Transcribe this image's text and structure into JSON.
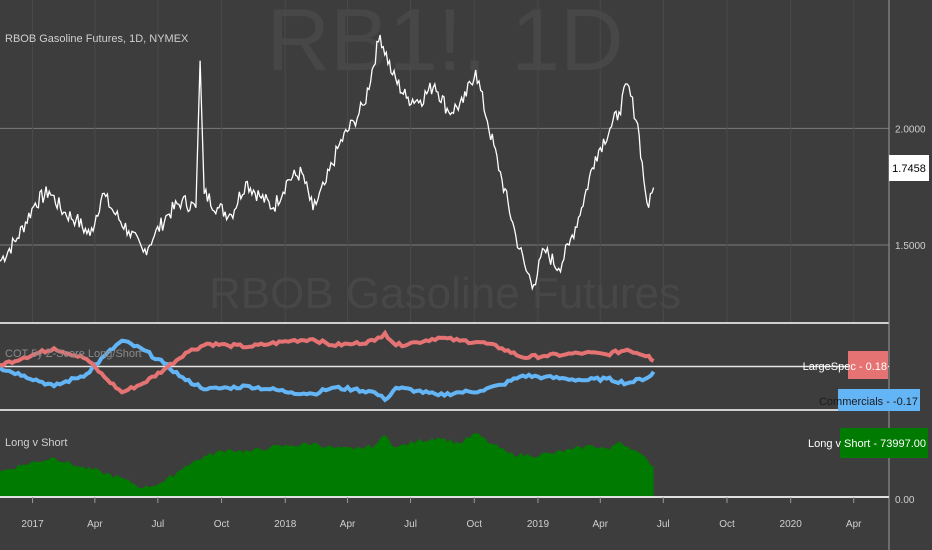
{
  "window": {
    "symbol_title": "RBOB Gasoline Futures, 1D, NYMEX",
    "watermark_symbol": "RB1!, 1D",
    "watermark_name": "RBOB Gasoline Futures"
  },
  "colors": {
    "background": "#3d3d3d",
    "price_line": "#ffffff",
    "grid": "#7a7a7a",
    "separator": "#cfcfcf",
    "large_spec": "#e57373",
    "commercials": "#64b5f6",
    "long_v_short": "#007a00",
    "price_tag_bg": "#ffffff",
    "price_tag_text": "#000000"
  },
  "chart_data": [
    {
      "type": "line",
      "title": "RBOB Gasoline Futures, 1D, NYMEX",
      "series": [
        {
          "values_x_dates": [
            "2016-11-15",
            "2016-12-10",
            "2017-01-05",
            "2017-01-25",
            "2017-02-15",
            "2017-03-05",
            "2017-03-25",
            "2017-04-12",
            "2017-05-01",
            "2017-05-20",
            "2017-06-10",
            "2017-06-26",
            "2017-07-15",
            "2017-08-05",
            "2017-08-25",
            "2017-08-31",
            "2017-09-06",
            "2017-09-25",
            "2017-10-15",
            "2017-11-05",
            "2017-11-25",
            "2017-12-15",
            "2018-01-05",
            "2018-01-25",
            "2018-02-10",
            "2018-03-01",
            "2018-03-20",
            "2018-04-10",
            "2018-04-25",
            "2018-05-18",
            "2018-06-05",
            "2018-06-25",
            "2018-07-15",
            "2018-08-05",
            "2018-08-25",
            "2018-09-15",
            "2018-10-03",
            "2018-10-20",
            "2018-11-10",
            "2018-11-30",
            "2018-12-15",
            "2018-12-26",
            "2019-01-10",
            "2019-01-31",
            "2019-02-15",
            "2019-03-05",
            "2019-03-25",
            "2019-04-15",
            "2019-04-28",
            "2019-05-10",
            "2019-05-25",
            "2019-06-05",
            "2019-06-10",
            "2019-06-17"
          ],
          "values": [
            1.43,
            1.53,
            1.68,
            1.73,
            1.64,
            1.61,
            1.54,
            1.72,
            1.63,
            1.56,
            1.47,
            1.54,
            1.63,
            1.69,
            1.66,
            2.29,
            1.72,
            1.66,
            1.63,
            1.77,
            1.71,
            1.66,
            1.78,
            1.81,
            1.65,
            1.77,
            1.93,
            2.03,
            2.1,
            2.4,
            2.23,
            2.13,
            2.12,
            2.19,
            2.07,
            2.11,
            2.25,
            2.03,
            1.78,
            1.54,
            1.39,
            1.33,
            1.48,
            1.4,
            1.5,
            1.66,
            1.88,
            2.0,
            2.07,
            2.19,
            2.02,
            1.73,
            1.66,
            1.7458
          ]
        }
      ],
      "y_ticks": [
        "2.0000",
        "1.5000"
      ],
      "ylim": [
        1.17,
        2.55
      ],
      "last_value_label": "1.7458",
      "grid": true
    },
    {
      "type": "line",
      "title": "COT 5y Z-Score Long/Short",
      "x_dates": [
        "2016-11-15",
        "2016-12-20",
        "2017-02-01",
        "2017-03-20",
        "2017-04-15",
        "2017-05-10",
        "2017-06-10",
        "2017-07-10",
        "2017-08-10",
        "2017-09-10",
        "2017-10-10",
        "2017-11-10",
        "2017-12-10",
        "2018-01-10",
        "2018-02-10",
        "2018-03-10",
        "2018-04-10",
        "2018-05-10",
        "2018-05-25",
        "2018-06-10",
        "2018-07-10",
        "2018-08-10",
        "2018-09-10",
        "2018-10-10",
        "2018-11-10",
        "2018-12-10",
        "2019-01-10",
        "2019-02-10",
        "2019-03-10",
        "2019-04-10",
        "2019-05-10",
        "2019-06-10",
        "2019-06-17"
      ],
      "series": [
        {
          "name": "LargeSpec",
          "values": [
            0.05,
            0.3,
            0.6,
            0.25,
            -0.35,
            -0.85,
            -0.55,
            -0.1,
            0.45,
            0.75,
            0.7,
            0.65,
            0.75,
            0.85,
            0.9,
            0.7,
            0.75,
            0.85,
            1.1,
            0.7,
            0.8,
            0.95,
            0.85,
            0.8,
            0.6,
            0.3,
            0.35,
            0.4,
            0.45,
            0.4,
            0.55,
            0.35,
            0.18
          ]
        },
        {
          "name": "Commercials",
          "values": [
            -0.05,
            -0.3,
            -0.65,
            -0.25,
            0.35,
            0.85,
            0.55,
            0.1,
            -0.45,
            -0.75,
            -0.7,
            -0.65,
            -0.75,
            -0.85,
            -0.9,
            -0.7,
            -0.75,
            -0.85,
            -1.1,
            -0.7,
            -0.8,
            -0.95,
            -0.85,
            -0.8,
            -0.6,
            -0.3,
            -0.35,
            -0.4,
            -0.45,
            -0.4,
            -0.55,
            -0.35,
            -0.17
          ]
        }
      ],
      "ylim": [
        -1.4,
        1.4
      ],
      "last_value_labels": [
        "LargeSpec - 0.18",
        "Commercials - -0.17"
      ]
    },
    {
      "type": "area",
      "title": "Long v Short",
      "x_dates": [
        "2016-11-15",
        "2016-12-20",
        "2017-02-01",
        "2017-03-10",
        "2017-04-10",
        "2017-05-15",
        "2017-06-10",
        "2017-07-10",
        "2017-08-10",
        "2017-09-10",
        "2017-10-10",
        "2017-11-10",
        "2017-12-10",
        "2018-01-10",
        "2018-02-10",
        "2018-03-10",
        "2018-04-10",
        "2018-05-10",
        "2018-05-25",
        "2018-06-10",
        "2018-07-10",
        "2018-08-10",
        "2018-09-10",
        "2018-10-03",
        "2018-10-25",
        "2018-11-20",
        "2018-12-20",
        "2019-01-20",
        "2019-02-20",
        "2019-03-20",
        "2019-04-15",
        "2019-04-28",
        "2019-05-20",
        "2019-06-17"
      ],
      "series": [
        {
          "name": "Long v Short",
          "values": [
            60000,
            78000,
            95000,
            72000,
            60000,
            40000,
            20000,
            35000,
            75000,
            100000,
            115000,
            110000,
            120000,
            125000,
            130000,
            120000,
            115000,
            125000,
            150000,
            120000,
            135000,
            145000,
            130000,
            155000,
            130000,
            105000,
            100000,
            105000,
            115000,
            125000,
            115000,
            135000,
            115000,
            73997
          ]
        }
      ],
      "y_ticks": [
        "0.00"
      ],
      "ylim": [
        0,
        210000
      ],
      "last_value_label": "Long v Short - 73997.00"
    }
  ],
  "x_axis": {
    "ticks": [
      {
        "label": "2017",
        "date": "2017-01-01"
      },
      {
        "label": "Apr",
        "date": "2017-04-01"
      },
      {
        "label": "Jul",
        "date": "2017-07-01"
      },
      {
        "label": "Oct",
        "date": "2017-10-01"
      },
      {
        "label": "2018",
        "date": "2018-01-01"
      },
      {
        "label": "Apr",
        "date": "2018-04-01"
      },
      {
        "label": "Jul",
        "date": "2018-07-01"
      },
      {
        "label": "Oct",
        "date": "2018-10-01"
      },
      {
        "label": "2019",
        "date": "2019-01-01"
      },
      {
        "label": "Apr",
        "date": "2019-04-01"
      },
      {
        "label": "Jul",
        "date": "2019-07-01"
      },
      {
        "label": "Oct",
        "date": "2019-10-01"
      },
      {
        "label": "2020",
        "date": "2020-01-01"
      },
      {
        "label": "Apr",
        "date": "2020-04-01"
      }
    ],
    "range": [
      "2016-11-15",
      "2020-05-22"
    ]
  }
}
